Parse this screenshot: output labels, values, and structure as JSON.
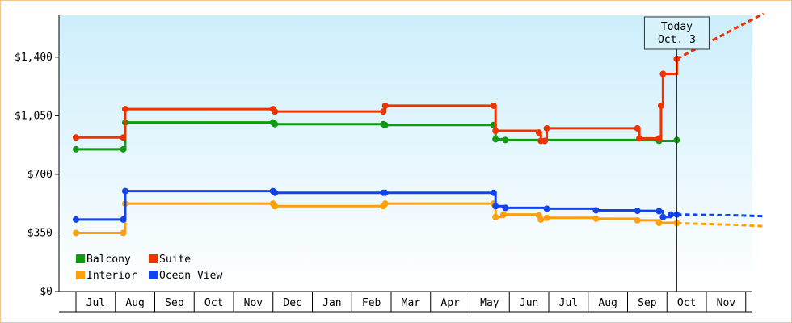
{
  "chart_data": {
    "type": "line",
    "title": "",
    "xlabel": "",
    "ylabel": "",
    "x_tick_labels": [
      "Jul",
      "Aug",
      "Sep",
      "Oct",
      "Nov",
      "Dec",
      "Jan",
      "Feb",
      "Mar",
      "Apr",
      "May",
      "Jun",
      "Jul",
      "Aug",
      "Sep",
      "Oct",
      "Nov"
    ],
    "y_ticks": [
      0,
      350,
      700,
      1050,
      1400
    ],
    "y_tick_labels": [
      "$0",
      "$350",
      "$700",
      "$1,050",
      "$1,400"
    ],
    "ylim": [
      0,
      1650
    ],
    "step": true,
    "grid": false,
    "legend_position": "bottom-left",
    "today_label": [
      "Today",
      "Oct. 3"
    ],
    "today_x": 15.25,
    "series": [
      {
        "name": "Balcony",
        "color": "#119911",
        "points": [
          [
            0,
            850
          ],
          [
            1.2,
            850
          ],
          [
            1.25,
            1010
          ],
          [
            5.0,
            1010
          ],
          [
            5.05,
            1000
          ],
          [
            7.8,
            1000
          ],
          [
            7.85,
            995
          ],
          [
            10.6,
            995
          ],
          [
            10.65,
            910
          ],
          [
            10.9,
            905
          ],
          [
            14.8,
            900
          ],
          [
            15.25,
            905
          ]
        ],
        "projection": []
      },
      {
        "name": "Suite",
        "color": "#ee3300",
        "points": [
          [
            0,
            920
          ],
          [
            1.2,
            920
          ],
          [
            1.25,
            1090
          ],
          [
            5.0,
            1090
          ],
          [
            5.05,
            1075
          ],
          [
            7.8,
            1075
          ],
          [
            7.85,
            1110
          ],
          [
            10.6,
            1110
          ],
          [
            10.65,
            960
          ],
          [
            11.75,
            950
          ],
          [
            11.8,
            900
          ],
          [
            11.9,
            900
          ],
          [
            11.95,
            975
          ],
          [
            14.25,
            975
          ],
          [
            14.3,
            915
          ],
          [
            14.8,
            915
          ],
          [
            14.85,
            1110
          ],
          [
            14.9,
            1300
          ],
          [
            15.25,
            1390
          ]
        ],
        "projection": [
          [
            15.25,
            1390
          ],
          [
            17.45,
            1660
          ]
        ]
      },
      {
        "name": "Interior",
        "color": "#ffa00a",
        "points": [
          [
            0,
            350
          ],
          [
            1.2,
            350
          ],
          [
            1.25,
            525
          ],
          [
            5.0,
            525
          ],
          [
            5.05,
            510
          ],
          [
            7.8,
            510
          ],
          [
            7.85,
            525
          ],
          [
            10.6,
            525
          ],
          [
            10.65,
            445
          ],
          [
            10.85,
            460
          ],
          [
            11.75,
            455
          ],
          [
            11.8,
            430
          ],
          [
            11.95,
            440
          ],
          [
            13.2,
            435
          ],
          [
            14.25,
            425
          ],
          [
            14.8,
            410
          ],
          [
            15.25,
            408
          ]
        ],
        "projection": [
          [
            15.25,
            408
          ],
          [
            16.8,
            398
          ],
          [
            17.45,
            390
          ]
        ]
      },
      {
        "name": "Ocean View",
        "color": "#1144ee",
        "points": [
          [
            0,
            430
          ],
          [
            1.2,
            430
          ],
          [
            1.25,
            600
          ],
          [
            5.0,
            600
          ],
          [
            5.05,
            590
          ],
          [
            7.8,
            590
          ],
          [
            7.85,
            590
          ],
          [
            10.6,
            590
          ],
          [
            10.65,
            510
          ],
          [
            10.9,
            500
          ],
          [
            11.95,
            495
          ],
          [
            13.2,
            485
          ],
          [
            14.25,
            482
          ],
          [
            14.8,
            480
          ],
          [
            14.9,
            445
          ],
          [
            15.1,
            460
          ],
          [
            15.25,
            460
          ]
        ],
        "projection": [
          [
            15.25,
            460
          ],
          [
            16.8,
            455
          ],
          [
            17.45,
            450
          ]
        ]
      }
    ]
  }
}
